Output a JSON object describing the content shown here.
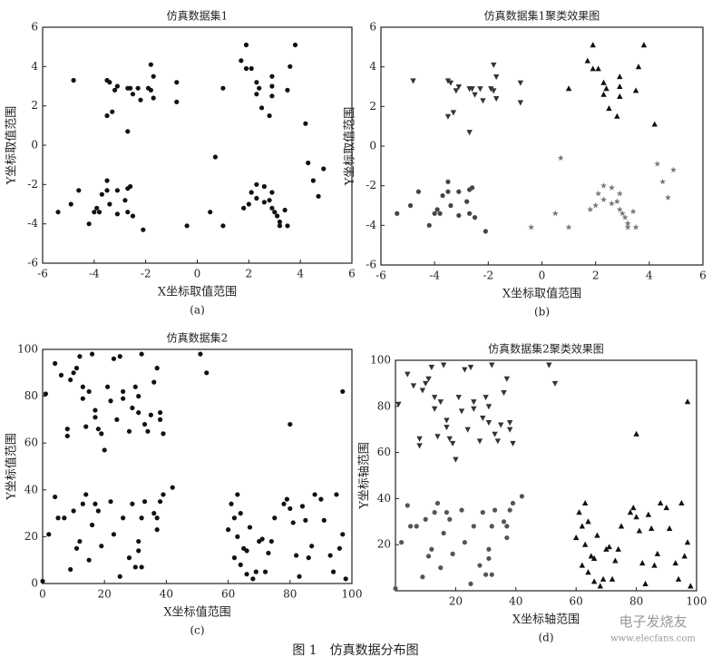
{
  "chart_data": [
    {
      "type": "scatter",
      "title": "仿真数据集1",
      "x_label": "X坐标取值范围",
      "y_label": "Y坐标取值范围",
      "caption": "(a)",
      "xlim": [
        -6,
        6
      ],
      "ylim": [
        -6,
        6
      ],
      "xticks": [
        -6,
        -4,
        -2,
        0,
        2,
        4,
        6
      ],
      "yticks": [
        -6,
        -4,
        -2,
        0,
        2,
        4,
        6
      ],
      "series": [
        {
          "marker": "circle",
          "color": "#111111",
          "x": [
            -4.8,
            -3.5,
            -3.4,
            -3.1,
            -3.2,
            -2.7,
            -2.6,
            -2.5,
            -2.3,
            -2.2,
            -1.8,
            -1.8,
            -1.7,
            -1.7,
            -0.8,
            -0.8,
            -3.5,
            -3.3,
            -2.7,
            -1.9,
            1.0,
            1.7,
            1.9,
            1.9,
            2.1,
            2.3,
            2.4,
            2.3,
            2.5,
            2.8,
            2.9,
            2.9,
            2.9,
            3.5,
            3.6,
            3.8,
            4.2,
            4.3,
            4.5,
            4.7,
            4.9,
            0.7,
            -5.4,
            -4.9,
            -4.6,
            -4.2,
            -4.0,
            -3.9,
            -3.8,
            -3.7,
            -3.5,
            -3.5,
            -3.4,
            -3.1,
            -3.1,
            -2.8,
            -2.7,
            -2.7,
            -2.6,
            -2.5,
            -2.1,
            -0.4,
            0.5,
            1.0,
            1.8,
            2.0,
            2.1,
            2.3,
            2.3,
            2.6,
            2.6,
            2.9,
            3.0,
            3.1,
            3.2,
            3.2,
            3.4,
            3.5,
            2.9,
            2.8
          ],
          "values": [
            3.3,
            3.3,
            3.2,
            3.0,
            2.8,
            2.9,
            2.9,
            2.6,
            2.9,
            2.3,
            2.8,
            4.1,
            3.5,
            2.4,
            3.2,
            2.2,
            1.5,
            1.7,
            0.7,
            2.9,
            2.9,
            4.3,
            5.1,
            3.9,
            3.9,
            3.2,
            2.9,
            2.6,
            1.9,
            1.5,
            3.0,
            2.5,
            3.5,
            2.8,
            4.0,
            5.1,
            1.1,
            -0.9,
            -1.8,
            -2.6,
            -1.2,
            -0.6,
            -3.4,
            -3.0,
            -2.3,
            -4.0,
            -3.4,
            -3.2,
            -3.4,
            -2.5,
            -2.3,
            -1.8,
            -3.0,
            -2.3,
            -3.5,
            -2.8,
            -2.2,
            -3.4,
            -2.1,
            -3.6,
            -4.3,
            -4.1,
            -3.4,
            -4.1,
            -3.2,
            -3.0,
            -2.4,
            -2.0,
            -2.7,
            -2.1,
            -2.9,
            -3.2,
            -3.4,
            -3.6,
            -3.9,
            -4.1,
            -3.3,
            -4.1,
            -2.4,
            -2.8
          ]
        }
      ]
    },
    {
      "type": "scatter",
      "title": "仿真数据集1聚类效果图",
      "x_label": "X坐标取值范围",
      "y_label": "Y坐标取值范围",
      "caption": "(b)",
      "xlim": [
        -6,
        6
      ],
      "ylim": [
        -6,
        6
      ],
      "xticks": [
        -6,
        -4,
        -2,
        0,
        2,
        4,
        6
      ],
      "yticks": [
        -6,
        -4,
        -2,
        0,
        2,
        4,
        6
      ],
      "series": [
        {
          "marker": "triangle-down",
          "color": "#333333",
          "x": [
            -4.8,
            -3.5,
            -3.4,
            -3.1,
            -3.2,
            -2.7,
            -2.6,
            -2.5,
            -2.3,
            -2.2,
            -1.8,
            -1.8,
            -1.7,
            -1.7,
            -0.8,
            -0.8,
            -3.5,
            -3.3,
            -2.7,
            -1.9
          ],
          "values": [
            3.3,
            3.3,
            3.2,
            3.0,
            2.8,
            2.9,
            2.9,
            2.6,
            2.9,
            2.3,
            2.8,
            4.1,
            3.5,
            2.4,
            3.2,
            2.2,
            1.5,
            1.7,
            0.7,
            2.9
          ]
        },
        {
          "marker": "triangle-up",
          "color": "#111111",
          "x": [
            1.0,
            1.7,
            1.9,
            1.9,
            2.1,
            2.3,
            2.4,
            2.3,
            2.5,
            2.8,
            2.9,
            2.9,
            2.9,
            3.5,
            3.6,
            3.8,
            4.2
          ],
          "values": [
            2.9,
            4.3,
            5.1,
            3.9,
            3.9,
            3.2,
            2.9,
            2.6,
            1.9,
            1.5,
            3.0,
            2.5,
            3.5,
            2.8,
            4.0,
            5.1,
            1.1
          ]
        },
        {
          "marker": "circle",
          "color": "#444444",
          "x": [
            -5.4,
            -4.9,
            -4.6,
            -4.2,
            -4.0,
            -3.9,
            -3.8,
            -3.7,
            -3.5,
            -3.5,
            -3.4,
            -3.1,
            -3.1,
            -2.8,
            -2.7,
            -2.7,
            -2.6,
            -2.5,
            -2.1
          ],
          "values": [
            -3.4,
            -3.0,
            -2.3,
            -4.0,
            -3.4,
            -3.2,
            -3.4,
            -2.5,
            -2.3,
            -1.8,
            -3.0,
            -2.3,
            -3.5,
            -2.8,
            -2.2,
            -3.4,
            -2.1,
            -3.6,
            -4.3
          ]
        },
        {
          "marker": "star",
          "color": "#777777",
          "x": [
            0.7,
            -0.4,
            0.5,
            1.0,
            1.8,
            2.0,
            2.1,
            2.3,
            2.3,
            2.6,
            2.6,
            2.9,
            3.0,
            3.1,
            3.2,
            3.2,
            3.4,
            3.5,
            2.9,
            2.8,
            4.3,
            4.5,
            4.7,
            4.9
          ],
          "values": [
            -0.6,
            -4.1,
            -3.4,
            -4.1,
            -3.2,
            -3.0,
            -2.4,
            -2.0,
            -2.7,
            -2.1,
            -2.9,
            -3.2,
            -3.4,
            -3.6,
            -3.9,
            -4.1,
            -3.3,
            -4.1,
            -2.4,
            -2.8,
            -0.9,
            -1.8,
            -2.6,
            -1.2
          ]
        }
      ]
    },
    {
      "type": "scatter",
      "title": "仿真数据集2",
      "x_label": "X坐标值范围",
      "y_label": "Y坐标值范围",
      "caption": "(c)",
      "xlim": [
        0,
        100
      ],
      "ylim": [
        0,
        100
      ],
      "xticks": [
        0,
        20,
        40,
        60,
        80,
        100
      ],
      "yticks": [
        0,
        20,
        40,
        60,
        80,
        100
      ],
      "series": [
        {
          "marker": "circle",
          "color": "#111111",
          "x": [
            1,
            4,
            6,
            8,
            8,
            9,
            10,
            11,
            12,
            13,
            13,
            14,
            15,
            16,
            17,
            17,
            18,
            19,
            20,
            21,
            22,
            23,
            24,
            25,
            26,
            26,
            28,
            29,
            30,
            31,
            31,
            32,
            33,
            34,
            35,
            36,
            37,
            38,
            38,
            39,
            51,
            53,
            97,
            80,
            0,
            2,
            4,
            5,
            7,
            9,
            10,
            11,
            12,
            13,
            14,
            15,
            16,
            17,
            18,
            19,
            22,
            23,
            25,
            26,
            28,
            29,
            30,
            31,
            31,
            32,
            32,
            33,
            36,
            37,
            38,
            39,
            42,
            37,
            60,
            61,
            62,
            62,
            63,
            63,
            64,
            64,
            65,
            66,
            66,
            67,
            68,
            69,
            70,
            71,
            72,
            73,
            74,
            75,
            78,
            79,
            80,
            81,
            82,
            83,
            84,
            85,
            86,
            87,
            88,
            90,
            91,
            93,
            94,
            95,
            96,
            97,
            98
          ],
          "values": [
            81,
            94,
            89,
            66,
            63,
            87,
            90,
            92,
            97,
            84,
            79,
            67,
            82,
            98,
            71,
            74,
            66,
            64,
            57,
            84,
            78,
            96,
            70,
            97,
            82,
            79,
            65,
            75,
            84,
            80,
            73,
            98,
            68,
            65,
            72,
            86,
            92,
            70,
            73,
            64,
            98,
            90,
            82,
            68,
            1,
            21,
            37,
            28,
            28,
            6,
            31,
            15,
            18,
            34,
            38,
            10,
            25,
            34,
            31,
            16,
            35,
            21,
            3,
            28,
            11,
            34,
            7,
            14,
            18,
            28,
            7,
            35,
            30,
            28,
            35,
            38,
            41,
            23,
            23,
            34,
            11,
            28,
            38,
            20,
            30,
            8,
            15,
            4,
            14,
            24,
            2,
            5,
            18,
            19,
            5,
            13,
            18,
            28,
            34,
            36,
            32,
            26,
            12,
            3,
            33,
            27,
            11,
            16,
            38,
            36,
            27,
            12,
            5,
            38,
            15,
            21,
            2
          ]
        }
      ]
    },
    {
      "type": "scatter",
      "title": "仿真数据集2聚类效果图",
      "x_label": "X坐标轴范围",
      "y_label": "Y坐标轴范围",
      "caption": "(d)",
      "xlim": [
        0,
        100
      ],
      "ylim": [
        0,
        100
      ],
      "xticks": [
        20,
        40,
        60,
        80,
        100
      ],
      "yticks": [
        20,
        40,
        60,
        80,
        100
      ],
      "series": [
        {
          "marker": "triangle-down",
          "color": "#333333",
          "x": [
            1,
            4,
            6,
            8,
            8,
            9,
            10,
            11,
            12,
            13,
            13,
            14,
            15,
            16,
            17,
            17,
            18,
            19,
            20,
            21,
            22,
            23,
            24,
            25,
            26,
            26,
            28,
            29,
            30,
            31,
            31,
            32,
            33,
            34,
            35,
            36,
            37,
            38,
            38,
            39,
            51,
            53
          ],
          "values": [
            81,
            94,
            89,
            66,
            63,
            87,
            90,
            92,
            97,
            84,
            79,
            67,
            82,
            98,
            71,
            74,
            66,
            64,
            57,
            84,
            78,
            96,
            70,
            97,
            82,
            79,
            65,
            75,
            84,
            80,
            73,
            98,
            68,
            65,
            72,
            86,
            92,
            70,
            73,
            64,
            98,
            90
          ]
        },
        {
          "marker": "circle",
          "color": "#555555",
          "x": [
            0,
            2,
            4,
            5,
            7,
            9,
            10,
            11,
            12,
            13,
            14,
            15,
            16,
            17,
            18,
            19,
            22,
            23,
            25,
            26,
            28,
            29,
            30,
            31,
            31,
            32,
            32,
            33,
            36,
            37,
            38,
            39,
            42,
            37
          ],
          "values": [
            1,
            21,
            37,
            28,
            28,
            6,
            31,
            15,
            18,
            34,
            38,
            10,
            25,
            34,
            31,
            16,
            35,
            21,
            3,
            28,
            11,
            34,
            7,
            14,
            18,
            28,
            7,
            35,
            30,
            28,
            35,
            38,
            41,
            23
          ]
        },
        {
          "marker": "triangle-up",
          "color": "#111111",
          "x": [
            97,
            80,
            60,
            61,
            62,
            62,
            63,
            63,
            64,
            64,
            65,
            66,
            66,
            67,
            68,
            69,
            70,
            71,
            72,
            73,
            74,
            75,
            78,
            79,
            80,
            81,
            82,
            83,
            84,
            85,
            86,
            87,
            88,
            90,
            91,
            93,
            94,
            95,
            96,
            97,
            98
          ],
          "values": [
            82,
            68,
            23,
            34,
            11,
            28,
            38,
            20,
            30,
            8,
            15,
            4,
            14,
            24,
            2,
            5,
            18,
            19,
            5,
            13,
            18,
            28,
            34,
            36,
            32,
            26,
            12,
            3,
            33,
            27,
            11,
            16,
            38,
            36,
            27,
            12,
            5,
            38,
            15,
            21,
            2
          ]
        }
      ]
    }
  ],
  "figure_caption": "图 1　仿真数据分布图",
  "watermark": {
    "text": "电子发烧友",
    "url": "www.elecfans.com"
  }
}
